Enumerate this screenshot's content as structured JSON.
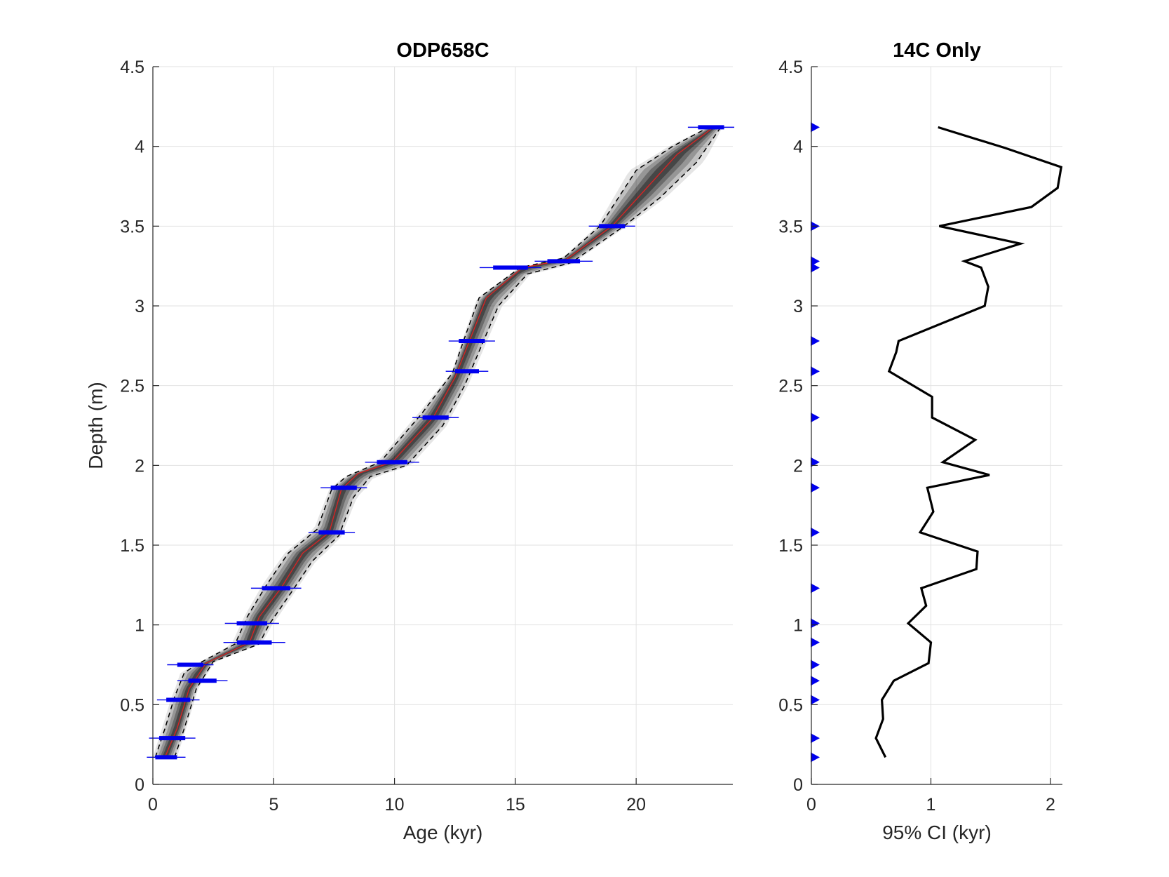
{
  "chart_data": [
    {
      "type": "line",
      "title": "ODP658C",
      "xlabel": "Age (kyr)",
      "ylabel": "Depth (m)",
      "xlim": [
        0,
        24
      ],
      "ylim": [
        0,
        4.5
      ],
      "xticks": [
        0,
        5,
        10,
        15,
        20
      ],
      "yticks": [
        0,
        0.5,
        1,
        1.5,
        2,
        2.5,
        3,
        3.5,
        4,
        4.5
      ],
      "grid": true,
      "colors": {
        "ensemble": "#000000",
        "median": "#dd2222",
        "bounds": "#000000",
        "dates": "#0000ee"
      },
      "median": {
        "x": [
          0.5,
          1.0,
          1.5,
          2.2,
          4.0,
          4.4,
          5.3,
          6.2,
          7.3,
          7.8,
          8.5,
          9.9,
          11.6,
          12.5,
          13.1,
          13.8,
          15.3,
          17.1,
          19.0,
          20.5,
          21.7,
          23.2
        ],
        "y": [
          0.17,
          0.35,
          0.6,
          0.76,
          0.89,
          1.05,
          1.23,
          1.45,
          1.58,
          1.85,
          1.95,
          2.02,
          2.3,
          2.55,
          2.78,
          3.05,
          3.24,
          3.29,
          3.5,
          3.75,
          3.95,
          4.12
        ]
      },
      "upper_bound": {
        "x": [
          0.1,
          0.5,
          0.9,
          1.3,
          1.8,
          3.4,
          3.9,
          4.7,
          5.6,
          6.8,
          7.4,
          8.0,
          9.4,
          11.1,
          12.4,
          12.9,
          13.5,
          15.2,
          17.0,
          18.5,
          20.0,
          21.5,
          23.0
        ],
        "y": [
          0.17,
          0.35,
          0.55,
          0.7,
          0.75,
          0.88,
          1.05,
          1.25,
          1.45,
          1.6,
          1.85,
          1.93,
          2.02,
          2.32,
          2.58,
          2.8,
          3.05,
          3.24,
          3.3,
          3.5,
          3.85,
          4.0,
          4.12
        ]
      },
      "lower_bound": {
        "x": [
          0.9,
          1.3,
          1.8,
          2.5,
          4.4,
          4.8,
          5.8,
          6.6,
          7.7,
          8.3,
          9.0,
          10.5,
          12.0,
          12.9,
          13.6,
          14.3,
          15.5,
          17.3,
          19.5,
          21.0,
          22.5,
          23.5
        ],
        "y": [
          0.17,
          0.35,
          0.6,
          0.77,
          0.88,
          1.0,
          1.22,
          1.4,
          1.56,
          1.8,
          1.93,
          2.0,
          2.25,
          2.5,
          2.75,
          3.0,
          3.2,
          3.27,
          3.5,
          3.68,
          3.9,
          4.12
        ]
      },
      "dates": {
        "depth": [
          0.17,
          0.29,
          0.53,
          0.65,
          0.75,
          0.89,
          1.01,
          1.23,
          1.58,
          1.86,
          2.02,
          2.3,
          2.59,
          2.78,
          3.24,
          3.28,
          3.5,
          4.12
        ],
        "age": [
          0.55,
          0.8,
          1.05,
          2.05,
          1.55,
          4.2,
          4.1,
          5.1,
          7.4,
          7.9,
          9.9,
          11.7,
          13.0,
          13.2,
          14.8,
          17.0,
          19.0,
          23.1
        ],
        "err": [
          0.5,
          0.6,
          0.55,
          0.65,
          0.6,
          0.8,
          0.7,
          0.65,
          0.6,
          0.6,
          0.7,
          0.6,
          0.55,
          0.6,
          0.8,
          0.75,
          0.6,
          0.6
        ]
      }
    },
    {
      "type": "line",
      "title": "14C Only",
      "xlabel": "95% CI (kyr)",
      "ylabel": "",
      "xlim": [
        0,
        2.1
      ],
      "ylim": [
        0,
        4.5
      ],
      "xticks": [
        0,
        1,
        2
      ],
      "yticks": [
        0,
        0.5,
        1,
        1.5,
        2,
        2.5,
        3,
        3.5,
        4,
        4.5
      ],
      "grid": true,
      "colors": {
        "line": "#000000",
        "markers": "#0000ee"
      },
      "ci_curve": {
        "x": [
          0.62,
          0.54,
          0.6,
          0.59,
          0.69,
          0.98,
          1.0,
          0.81,
          0.96,
          0.92,
          1.38,
          1.39,
          0.91,
          1.02,
          0.97,
          1.49,
          1.1,
          1.37,
          1.01,
          1.01,
          0.65,
          0.71,
          0.73,
          1.45,
          1.48,
          1.42,
          1.28,
          1.75,
          1.07,
          1.84,
          2.06,
          2.09,
          1.62,
          1.06
        ],
        "y": [
          0.17,
          0.29,
          0.41,
          0.53,
          0.65,
          0.76,
          0.89,
          1.01,
          1.12,
          1.23,
          1.35,
          1.46,
          1.58,
          1.71,
          1.86,
          1.94,
          2.02,
          2.16,
          2.3,
          2.43,
          2.59,
          2.71,
          2.78,
          3.0,
          3.12,
          3.24,
          3.28,
          3.39,
          3.5,
          3.62,
          3.74,
          3.87,
          3.99,
          4.12
        ]
      },
      "date_depths": [
        0.17,
        0.29,
        0.53,
        0.65,
        0.75,
        0.89,
        1.01,
        1.23,
        1.58,
        1.86,
        2.02,
        2.3,
        2.59,
        2.78,
        3.24,
        3.28,
        3.5,
        4.12
      ]
    }
  ]
}
